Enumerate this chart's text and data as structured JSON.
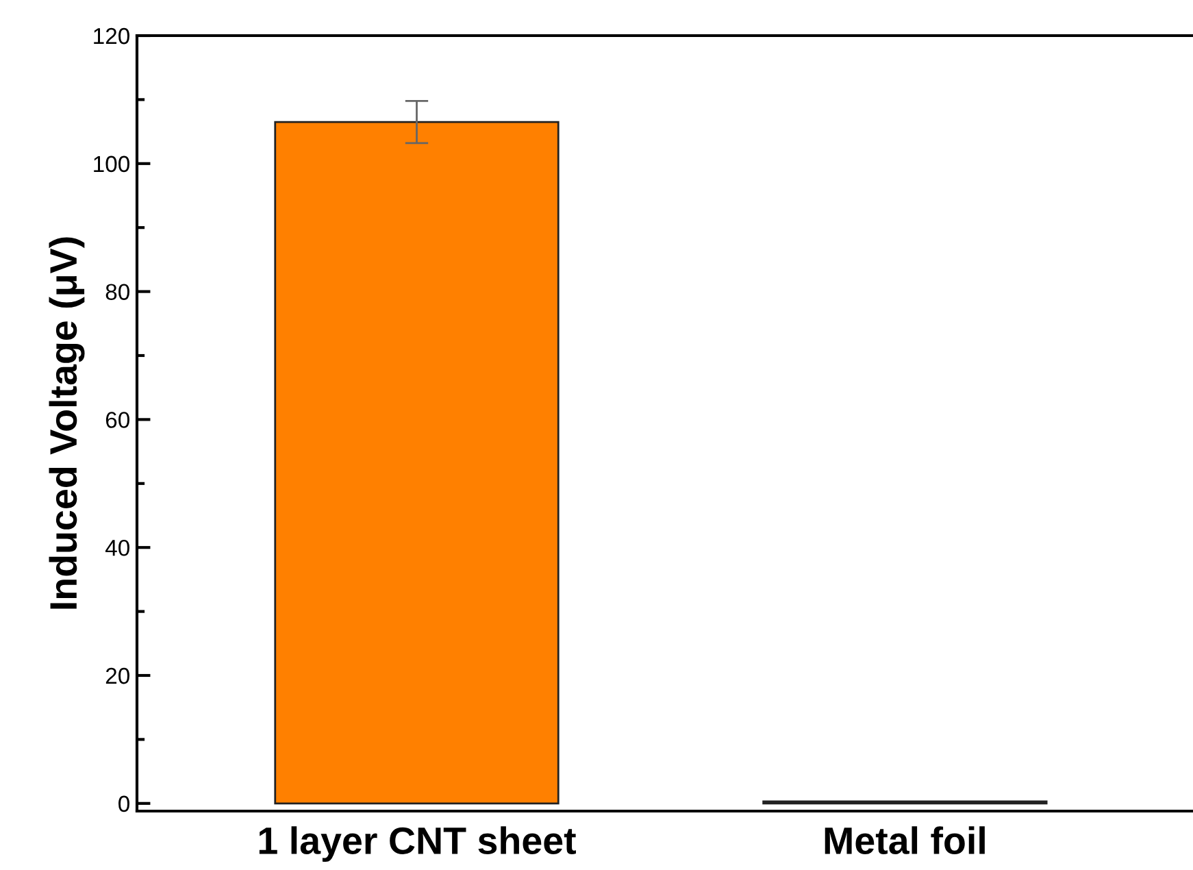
{
  "chart_data": {
    "type": "bar",
    "ylabel": "Induced Voltage (μV)",
    "categories": [
      "1 layer CNT sheet",
      "Metal foil"
    ],
    "values": [
      106.5,
      0.3
    ],
    "colors": [
      "#ff8000",
      "#7f00ff"
    ],
    "errors": [
      3.3,
      null
    ],
    "ylim": [
      -1.2,
      120
    ],
    "yticks": [
      0,
      20,
      40,
      60,
      80,
      100,
      120
    ],
    "grid": false
  }
}
